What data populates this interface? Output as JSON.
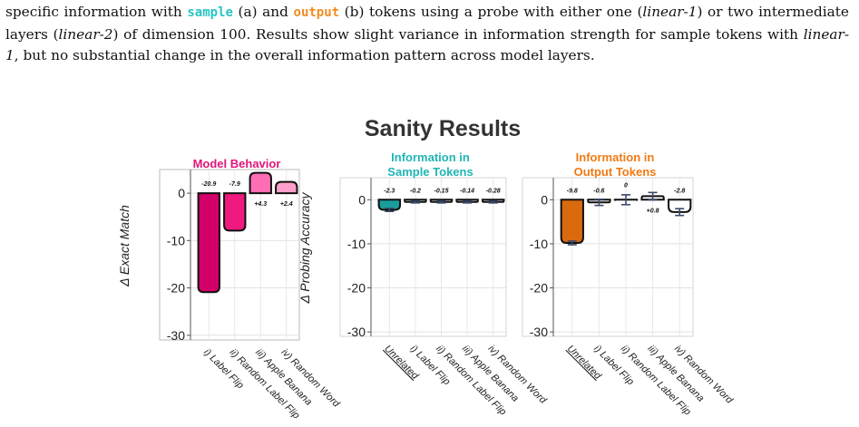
{
  "caption": {
    "line1_pre": "specific information with ",
    "tok_sample": "sample",
    "line1_mid1": " (a) and ",
    "tok_output": "output",
    "line1_mid2": " (b) tokens using a probe with either one (",
    "em_linear1": "linear-1",
    "line1_post": ") or two intermediate layers (",
    "em_linear2": "linear-2",
    "line2_mid": ") of dimension 100. Results show slight variance in information strength for sample tokens with ",
    "em_linear1b": "linear-1",
    "line2_post": ", but no substantial change in the overall information pattern across model layers."
  },
  "chart_data": {
    "title": "Sanity Results",
    "panels": [
      {
        "type": "bar",
        "title": "Model Behavior",
        "title_color": "#e0157a",
        "ylabel": "Δ Exact Match",
        "ylim": [
          -31,
          5
        ],
        "yticks": [
          0,
          -10,
          -20,
          -30
        ],
        "grid": true,
        "categories": [
          "i) Label Flip",
          "ii) Random Label Flip",
          "iii) Apple Banana",
          "iv) Random Word"
        ],
        "underline_categories": [],
        "values": [
          -20.9,
          -7.9,
          4.3,
          2.4
        ],
        "labels": [
          "-20.9",
          "-7.9",
          "+4.3",
          "+2.4"
        ],
        "colors": [
          "#d4006a",
          "#f0197f",
          "#ff6eb4",
          "#ff9fcb"
        ],
        "errors": [
          0,
          0,
          0,
          0
        ]
      },
      {
        "type": "bar",
        "title": "Information in\nSample Tokens",
        "title_color": "#1fb6b6",
        "ylabel": "Δ Probing Accuracy",
        "ylim": [
          -31,
          5
        ],
        "yticks": [
          0,
          -10,
          -20,
          -30
        ],
        "grid": true,
        "categories": [
          "Unrelated",
          "i) Label Flip",
          "ii) Random Label Flip",
          "iii) Apple Banana",
          "iv) Random Word"
        ],
        "underline_categories": [
          "Unrelated"
        ],
        "values": [
          -2.3,
          -0.2,
          -0.15,
          -0.14,
          -0.28
        ],
        "labels": [
          "-2.3",
          "-0.2",
          "-0.15",
          "-0.14",
          "-0.28"
        ],
        "colors": [
          "#1a9c9c",
          "#ffffff",
          "#ffffff",
          "#ffffff",
          "#ffffff"
        ],
        "errors": [
          0.5,
          0.3,
          0.3,
          0.3,
          0.3
        ]
      },
      {
        "type": "bar",
        "title": "Information in\nOutput Tokens",
        "title_color": "#f07a14",
        "ylabel": "",
        "ylim": [
          -31,
          5
        ],
        "yticks": [
          0,
          -10,
          -20,
          -30
        ],
        "grid": true,
        "categories": [
          "Unrelated",
          "i) Label Flip",
          "ii) Random Label Flip",
          "iii) Apple Banana",
          "iv) Random Word"
        ],
        "underline_categories": [
          "Unrelated"
        ],
        "values": [
          -9.8,
          -0.6,
          0,
          0.8,
          -2.8
        ],
        "labels": [
          "-9.8",
          "-0.6",
          "0",
          "+0.8",
          "-2.8"
        ],
        "colors": [
          "#d96a0d",
          "#ffffff",
          "#ffffff",
          "#ffffff",
          "#ffffff"
        ],
        "errors": [
          0.6,
          1.0,
          1.6,
          1.2,
          1.1
        ]
      }
    ]
  }
}
